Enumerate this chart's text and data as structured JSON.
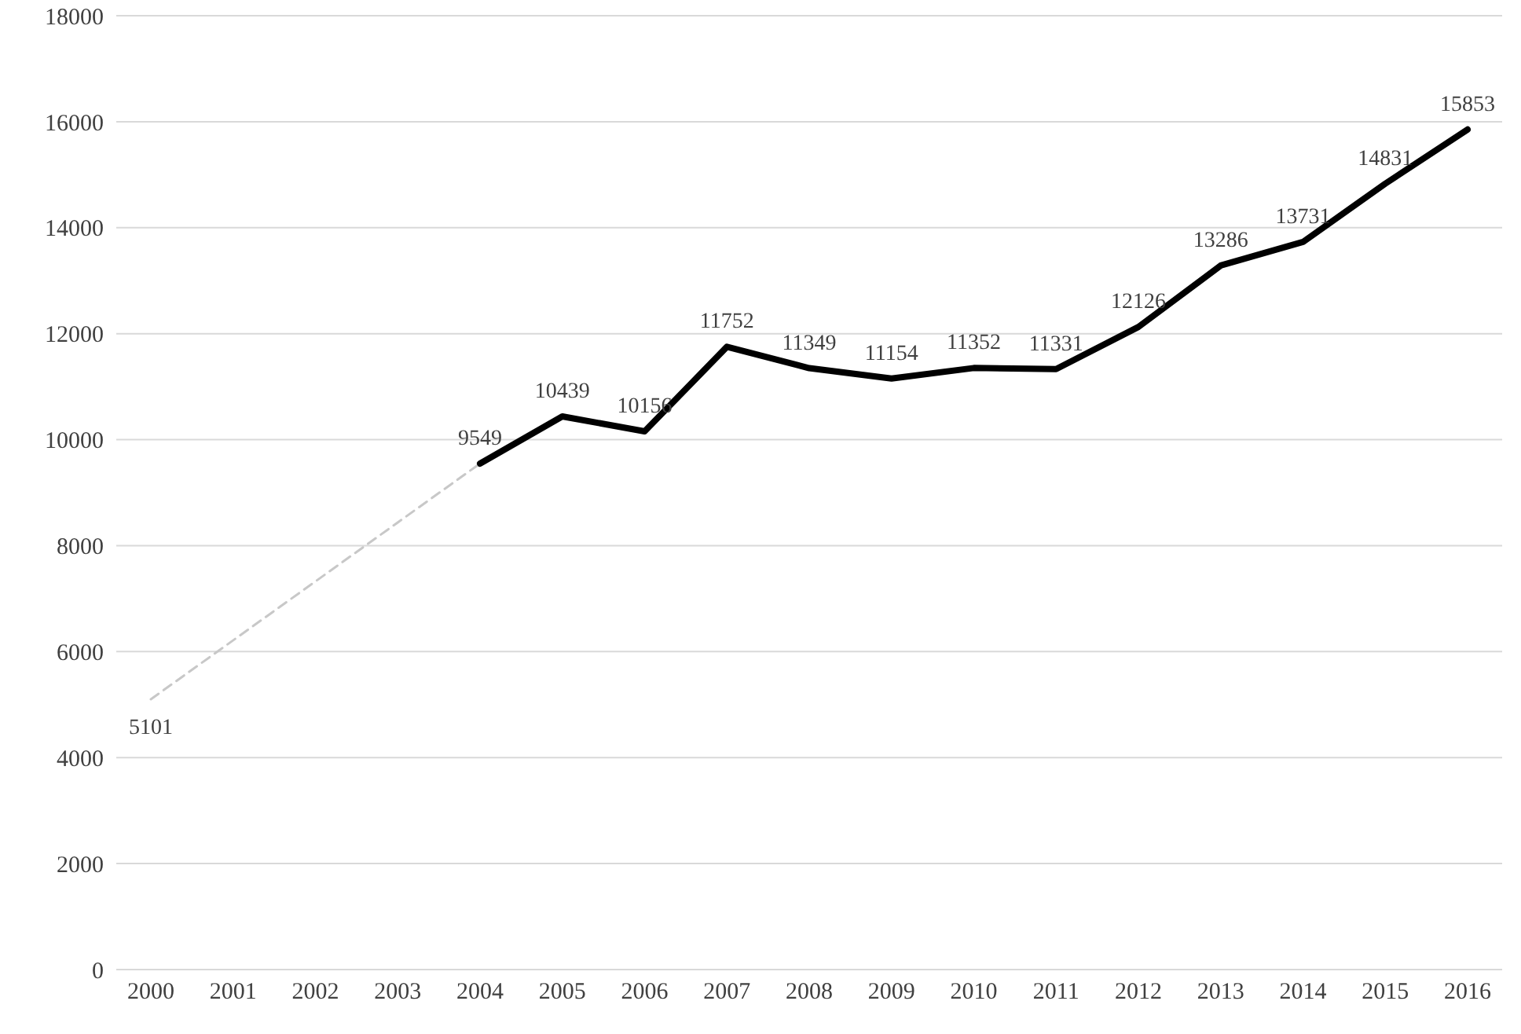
{
  "chart_data": {
    "type": "line",
    "categories": [
      "2000",
      "2001",
      "2002",
      "2003",
      "2004",
      "2005",
      "2006",
      "2007",
      "2008",
      "2009",
      "2010",
      "2011",
      "2012",
      "2013",
      "2014",
      "2015",
      "2016"
    ],
    "series": [
      {
        "color": "#c8c8c8",
        "line_style": "dashed",
        "values": [
          5101,
          null,
          null,
          null,
          9549,
          null,
          null,
          null,
          null,
          null,
          null,
          null,
          null,
          null,
          null,
          null,
          null
        ],
        "value_labels": [
          "5101",
          null,
          null,
          null,
          null,
          null,
          null,
          null,
          null,
          null,
          null,
          null,
          null,
          null,
          null,
          null,
          null
        ]
      },
      {
        "color": "#000000",
        "line_style": "solid",
        "values": [
          null,
          null,
          null,
          null,
          9549,
          10439,
          10156,
          11752,
          11349,
          11154,
          11352,
          11331,
          12126,
          13286,
          13731,
          14831,
          15853
        ],
        "value_labels": [
          null,
          null,
          null,
          null,
          "9549",
          "10439",
          "10156",
          "11752",
          "11349",
          "11154",
          "11352",
          "11331",
          "12126",
          "13286",
          "13731",
          "14831",
          "15853"
        ]
      }
    ],
    "ylim": [
      0,
      18000
    ],
    "yticks": [
      0,
      2000,
      4000,
      6000,
      8000,
      10000,
      12000,
      14000,
      16000,
      18000
    ],
    "grid": "y",
    "legend": false,
    "marker": "none"
  }
}
